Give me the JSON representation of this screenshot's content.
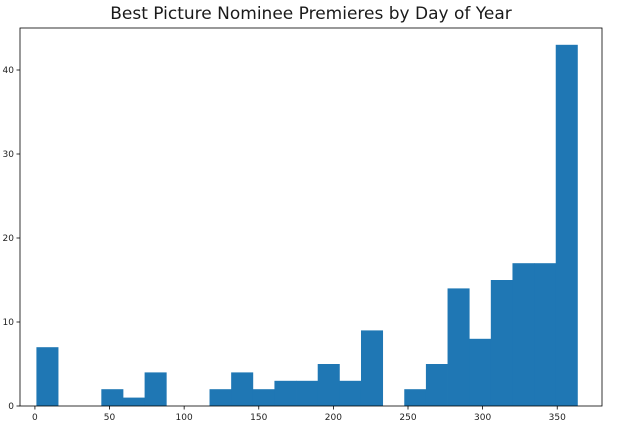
{
  "chart_data": {
    "type": "histogram",
    "title": "Best Picture Nominee Premieres by Day of Year",
    "xlabel": "",
    "ylabel": "",
    "xlim": [
      -10,
      380
    ],
    "ylim": [
      0,
      45
    ],
    "grid": false,
    "bar_color": "#1f77b4",
    "bin_width": 14.5,
    "bins": [
      {
        "x0": 1.0,
        "value": 7
      },
      {
        "x0": 15.5,
        "value": 0
      },
      {
        "x0": 30.0,
        "value": 0
      },
      {
        "x0": 44.5,
        "value": 2
      },
      {
        "x0": 59.0,
        "value": 1
      },
      {
        "x0": 73.5,
        "value": 4
      },
      {
        "x0": 88.0,
        "value": 0
      },
      {
        "x0": 102.5,
        "value": 0
      },
      {
        "x0": 117.0,
        "value": 2
      },
      {
        "x0": 131.5,
        "value": 4
      },
      {
        "x0": 146.0,
        "value": 2
      },
      {
        "x0": 160.5,
        "value": 3
      },
      {
        "x0": 175.0,
        "value": 3
      },
      {
        "x0": 189.5,
        "value": 5
      },
      {
        "x0": 204.0,
        "value": 3
      },
      {
        "x0": 218.5,
        "value": 9
      },
      {
        "x0": 233.0,
        "value": 0
      },
      {
        "x0": 247.5,
        "value": 2
      },
      {
        "x0": 262.0,
        "value": 5
      },
      {
        "x0": 276.5,
        "value": 14
      },
      {
        "x0": 291.0,
        "value": 8
      },
      {
        "x0": 305.5,
        "value": 15
      },
      {
        "x0": 320.0,
        "value": 17
      },
      {
        "x0": 334.5,
        "value": 17
      },
      {
        "x0": 349.0,
        "value": 43
      }
    ],
    "x_ticks": [
      0,
      50,
      100,
      150,
      200,
      250,
      300,
      350
    ],
    "y_ticks": [
      0,
      10,
      20,
      30,
      40
    ]
  }
}
